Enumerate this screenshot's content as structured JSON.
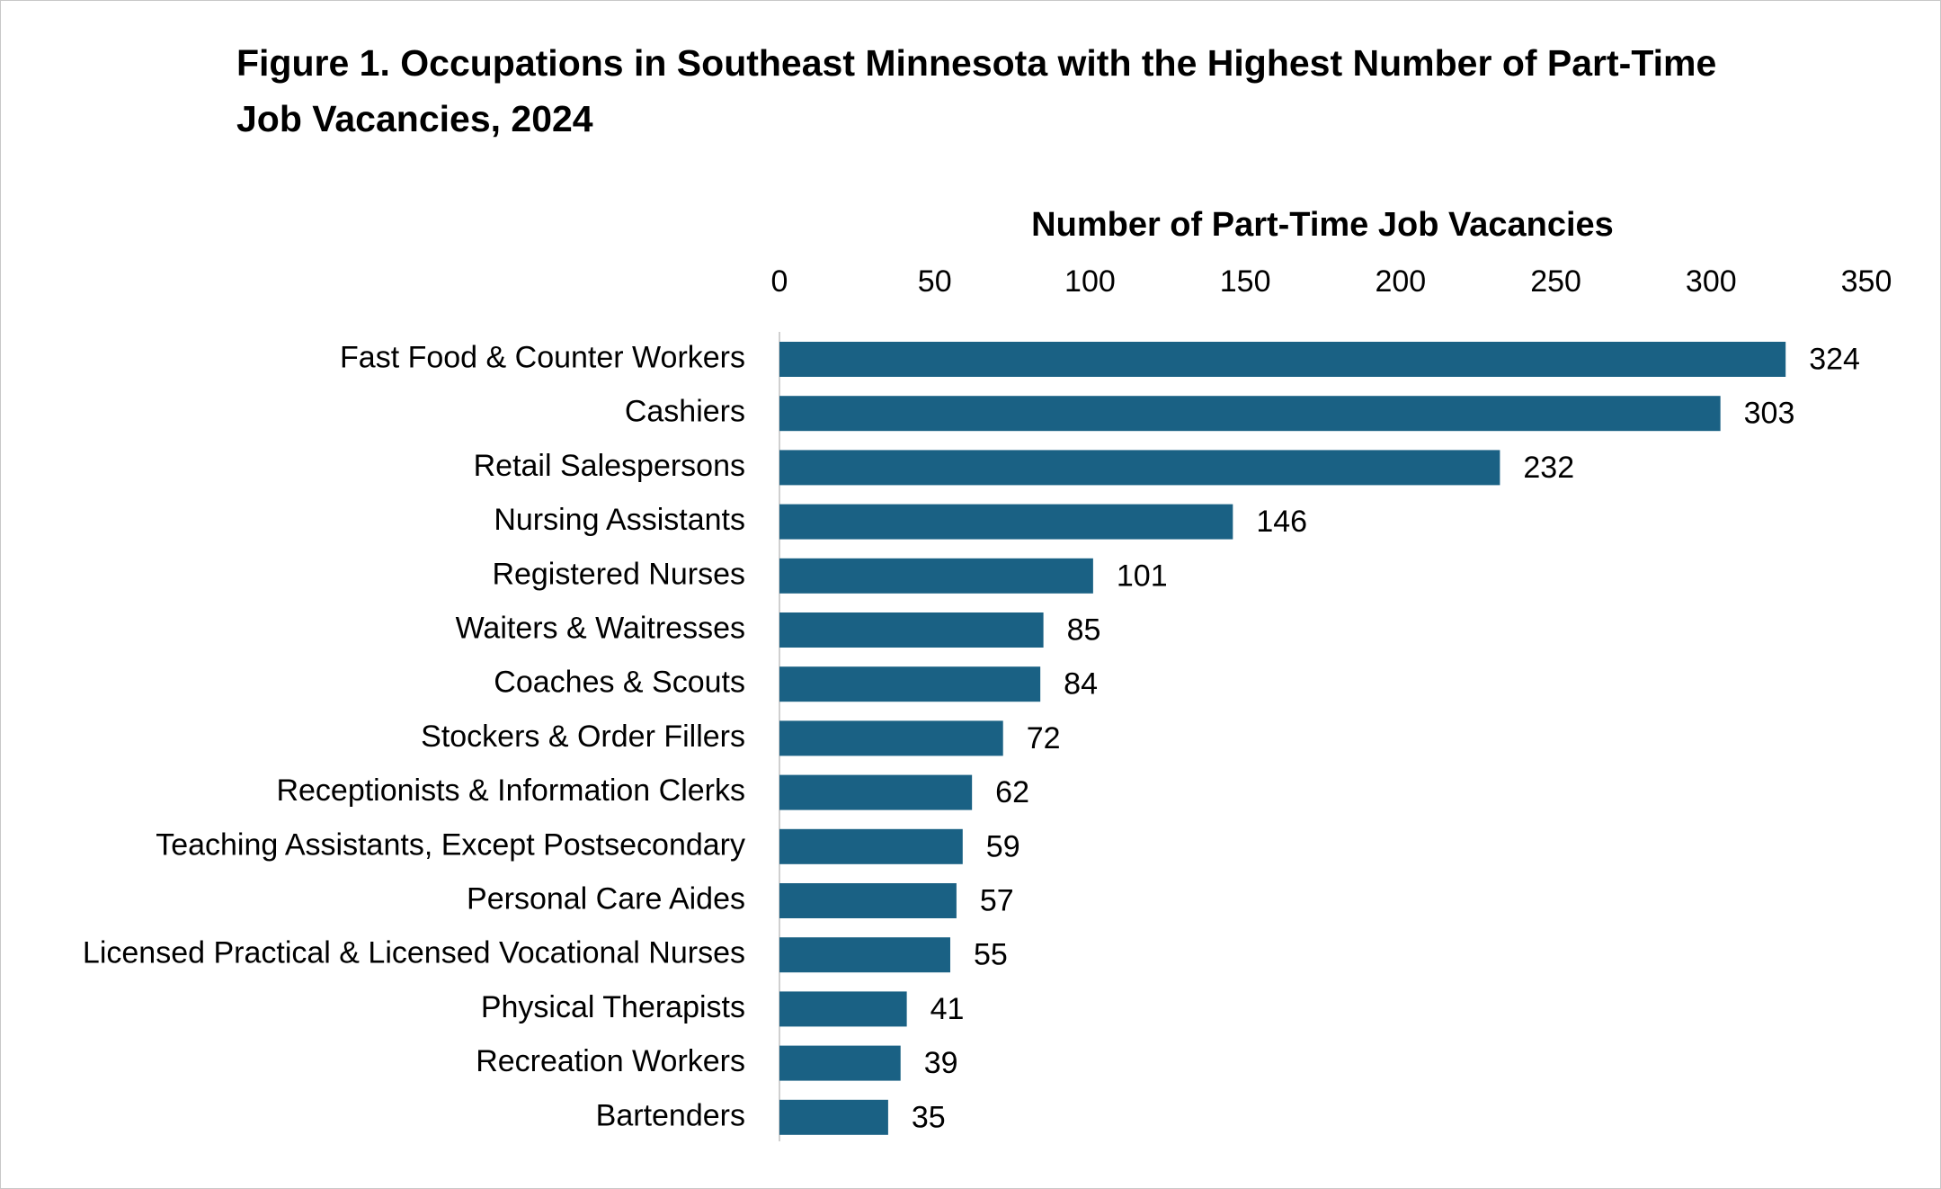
{
  "chart_data": {
    "type": "bar",
    "orientation": "horizontal",
    "title": "Figure 1. Occupations in Southeast Minnesota with the Highest Number of Part-Time Job Vacancies, 2024",
    "x_label": "Number of Part-Time Job Vacancies",
    "categories": [
      "Fast Food & Counter Workers",
      "Cashiers",
      "Retail Salespersons",
      "Nursing Assistants",
      "Registered Nurses",
      "Waiters & Waitresses",
      "Coaches & Scouts",
      "Stockers & Order Fillers",
      "Receptionists & Information Clerks",
      "Teaching Assistants, Except Postsecondary",
      "Personal Care Aides",
      "Licensed Practical & Licensed Vocational Nurses",
      "Physical Therapists",
      "Recreation Workers",
      "Bartenders"
    ],
    "values": [
      324,
      303,
      232,
      146,
      101,
      85,
      84,
      72,
      62,
      59,
      57,
      55,
      41,
      39,
      35
    ],
    "color": "#1a6184",
    "xlim": [
      0,
      350
    ],
    "xticks": [
      0,
      50,
      100,
      150,
      200,
      250,
      300,
      350
    ]
  }
}
